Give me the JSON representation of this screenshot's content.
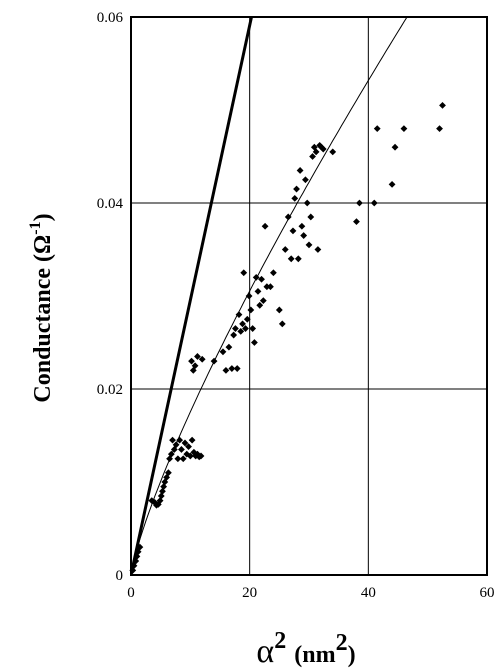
{
  "chart_data": {
    "type": "scatter",
    "title": "",
    "ylabel": {
      "text": "Conductance (",
      "omega": "Ω",
      "exp": "-1",
      "close": ")"
    },
    "xlabel": {
      "alpha": "α",
      "sup": "2",
      "unit_open": "(nm",
      "unit_sup": "2",
      "unit_close": ")"
    },
    "xlim": [
      0,
      60
    ],
    "ylim": [
      0,
      0.06
    ],
    "x_ticks": [
      0,
      20,
      40,
      60
    ],
    "x_tick_labels": [
      "0",
      "20",
      "40",
      "60"
    ],
    "y_ticks": [
      0,
      0.02,
      0.04,
      0.06
    ],
    "y_tick_labels": [
      "0",
      "0.02",
      "0.04",
      "0.06"
    ],
    "grid": true,
    "series": [
      {
        "kind": "points",
        "marker": "diamond",
        "color": "#000000",
        "points": [
          [
            0.3,
            0.0005
          ],
          [
            0.5,
            0.001
          ],
          [
            0.8,
            0.0015
          ],
          [
            1.0,
            0.002
          ],
          [
            1.2,
            0.0025
          ],
          [
            1.5,
            0.003
          ],
          [
            3.5,
            0.008
          ],
          [
            4.0,
            0.0078
          ],
          [
            4.3,
            0.0075
          ],
          [
            4.6,
            0.0076
          ],
          [
            4.9,
            0.008
          ],
          [
            5.1,
            0.0085
          ],
          [
            5.3,
            0.009
          ],
          [
            5.5,
            0.0095
          ],
          [
            5.7,
            0.01
          ],
          [
            6.0,
            0.0105
          ],
          [
            6.3,
            0.011
          ],
          [
            6.5,
            0.0125
          ],
          [
            6.8,
            0.013
          ],
          [
            7.0,
            0.0145
          ],
          [
            7.3,
            0.0135
          ],
          [
            7.6,
            0.014
          ],
          [
            7.9,
            0.0125
          ],
          [
            8.2,
            0.0145
          ],
          [
            8.5,
            0.0135
          ],
          [
            8.8,
            0.0125
          ],
          [
            9.1,
            0.0142
          ],
          [
            9.4,
            0.013
          ],
          [
            9.7,
            0.0138
          ],
          [
            10.0,
            0.0128
          ],
          [
            10.3,
            0.0145
          ],
          [
            10.6,
            0.0132
          ],
          [
            10.9,
            0.0128
          ],
          [
            11.2,
            0.013
          ],
          [
            11.5,
            0.0127
          ],
          [
            11.8,
            0.0128
          ],
          [
            10.2,
            0.023
          ],
          [
            10.5,
            0.022
          ],
          [
            10.8,
            0.0225
          ],
          [
            11.2,
            0.0235
          ],
          [
            12.0,
            0.0232
          ],
          [
            14.0,
            0.023
          ],
          [
            15.5,
            0.024
          ],
          [
            16.0,
            0.022
          ],
          [
            16.5,
            0.0245
          ],
          [
            17.0,
            0.0222
          ],
          [
            17.3,
            0.0258
          ],
          [
            17.6,
            0.0265
          ],
          [
            17.9,
            0.0222
          ],
          [
            18.2,
            0.028
          ],
          [
            18.5,
            0.0262
          ],
          [
            18.8,
            0.027
          ],
          [
            19.0,
            0.0325
          ],
          [
            19.3,
            0.0265
          ],
          [
            19.6,
            0.0275
          ],
          [
            19.9,
            0.03
          ],
          [
            20.2,
            0.0285
          ],
          [
            20.5,
            0.0265
          ],
          [
            20.8,
            0.025
          ],
          [
            21.1,
            0.032
          ],
          [
            21.4,
            0.0305
          ],
          [
            21.7,
            0.029
          ],
          [
            22.0,
            0.0318
          ],
          [
            22.3,
            0.0295
          ],
          [
            22.6,
            0.0375
          ],
          [
            22.9,
            0.031
          ],
          [
            23.5,
            0.031
          ],
          [
            24.0,
            0.0325
          ],
          [
            25.0,
            0.0285
          ],
          [
            25.5,
            0.027
          ],
          [
            26.0,
            0.035
          ],
          [
            26.5,
            0.0385
          ],
          [
            27.0,
            0.034
          ],
          [
            27.3,
            0.037
          ],
          [
            27.6,
            0.0405
          ],
          [
            27.9,
            0.0415
          ],
          [
            28.2,
            0.034
          ],
          [
            28.5,
            0.0435
          ],
          [
            28.8,
            0.0375
          ],
          [
            29.1,
            0.0365
          ],
          [
            29.4,
            0.0425
          ],
          [
            29.7,
            0.04
          ],
          [
            30.0,
            0.0355
          ],
          [
            30.3,
            0.0385
          ],
          [
            30.6,
            0.045
          ],
          [
            30.9,
            0.046
          ],
          [
            31.2,
            0.0455
          ],
          [
            31.5,
            0.035
          ],
          [
            31.8,
            0.0462
          ],
          [
            32.1,
            0.046
          ],
          [
            32.4,
            0.0458
          ],
          [
            34.0,
            0.0455
          ],
          [
            38.0,
            0.038
          ],
          [
            38.5,
            0.04
          ],
          [
            41.0,
            0.04
          ],
          [
            41.5,
            0.048
          ],
          [
            44.0,
            0.042
          ],
          [
            44.5,
            0.046
          ],
          [
            46.0,
            0.048
          ],
          [
            52.0,
            0.048
          ],
          [
            52.5,
            0.0505
          ]
        ]
      },
      {
        "kind": "line",
        "color": "#000000",
        "width": 3,
        "points": [
          [
            0,
            0
          ],
          [
            22,
            0.065
          ]
        ]
      },
      {
        "kind": "curve",
        "color": "#000000",
        "width": 1,
        "formula": "0.00278*x^0.8",
        "x_range": [
          0,
          60
        ]
      }
    ]
  }
}
